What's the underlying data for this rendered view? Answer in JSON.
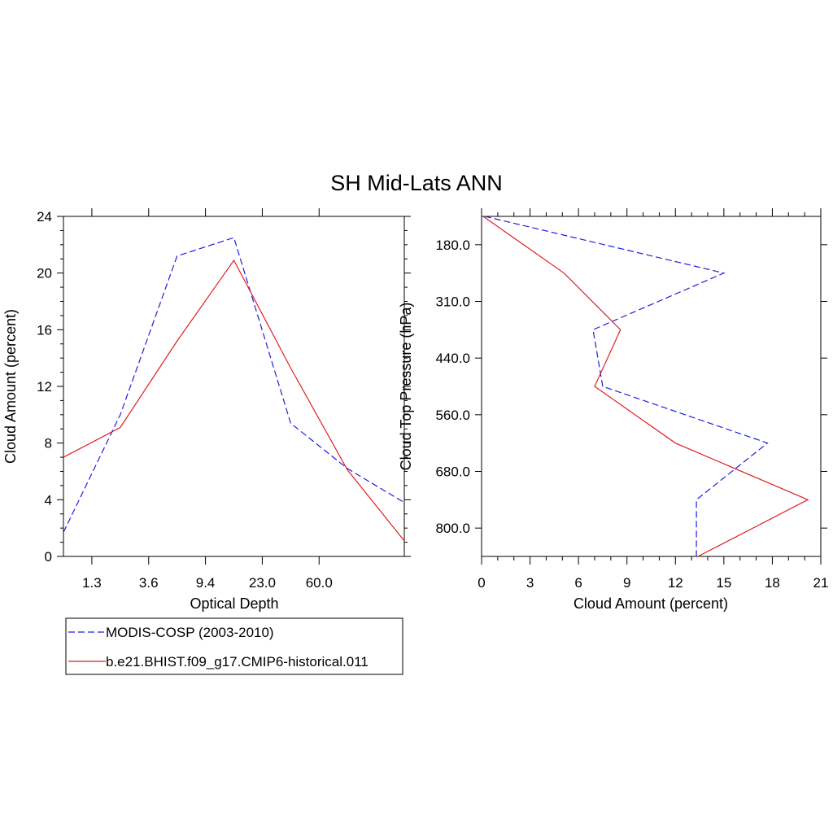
{
  "title": "SH Mid-Lats ANN",
  "colors": {
    "obs": "#1f1fe0",
    "model": "#e01f1f"
  },
  "chart_data": [
    {
      "type": "line",
      "xlabel": "Optical Depth",
      "ylabel": "Cloud Amount (percent)",
      "ylim": [
        0,
        24
      ],
      "y_ticks": [
        "0",
        "4",
        "8",
        "12",
        "16",
        "20",
        "24"
      ],
      "x_ticks": [
        "1.3",
        "3.6",
        "9.4",
        "23.0",
        "60.0"
      ],
      "x": [
        0,
        1,
        2,
        3,
        4,
        5,
        6
      ],
      "xlim": [
        0,
        6
      ],
      "x_tick_positions": [
        0.5,
        1.5,
        2.5,
        3.5,
        4.5
      ],
      "series": [
        {
          "name": "MODIS-COSP (2003-2010)",
          "style": "dashed",
          "color": "#1f1fe0",
          "values": [
            1.7,
            10.0,
            21.2,
            22.5,
            9.4,
            6.2,
            3.8
          ]
        },
        {
          "name": "b.e21.BHIST.f09_g17.CMIP6-historical.011",
          "style": "solid",
          "color": "#e01f1f",
          "values": [
            7.0,
            9.1,
            15.2,
            20.9,
            13.3,
            6.1,
            1.1
          ]
        }
      ]
    },
    {
      "type": "line",
      "xlabel": "Cloud Amount (percent)",
      "ylabel": "Cloud Top Pressure (hPa)",
      "xlim": [
        0,
        21
      ],
      "x_ticks": [
        "0",
        "3",
        "6",
        "9",
        "12",
        "15",
        "18",
        "21"
      ],
      "y_ticks": [
        "180.0",
        "310.0",
        "440.0",
        "560.0",
        "680.0",
        "800.0"
      ],
      "y": [
        0,
        1,
        2,
        3,
        4,
        5,
        6
      ],
      "y_tick_positions": [
        0.5,
        1.5,
        2.5,
        3.5,
        4.5,
        5.5
      ],
      "series": [
        {
          "name": "MODIS-COSP (2003-2010)",
          "style": "dashed",
          "color": "#1f1fe0",
          "values": [
            0.2,
            15.0,
            6.9,
            7.5,
            17.7,
            13.3,
            13.3
          ]
        },
        {
          "name": "b.e21.BHIST.f09_g17.CMIP6-historical.011",
          "style": "solid",
          "color": "#e01f1f",
          "values": [
            0.1,
            5.1,
            8.6,
            7.0,
            12.0,
            20.2,
            13.4
          ]
        }
      ]
    }
  ],
  "legend": [
    {
      "label": "MODIS-COSP (2003-2010)",
      "style": "dashed",
      "color": "#1f1fe0"
    },
    {
      "label": "b.e21.BHIST.f09_g17.CMIP6-historical.011",
      "style": "solid",
      "color": "#e01f1f"
    }
  ]
}
